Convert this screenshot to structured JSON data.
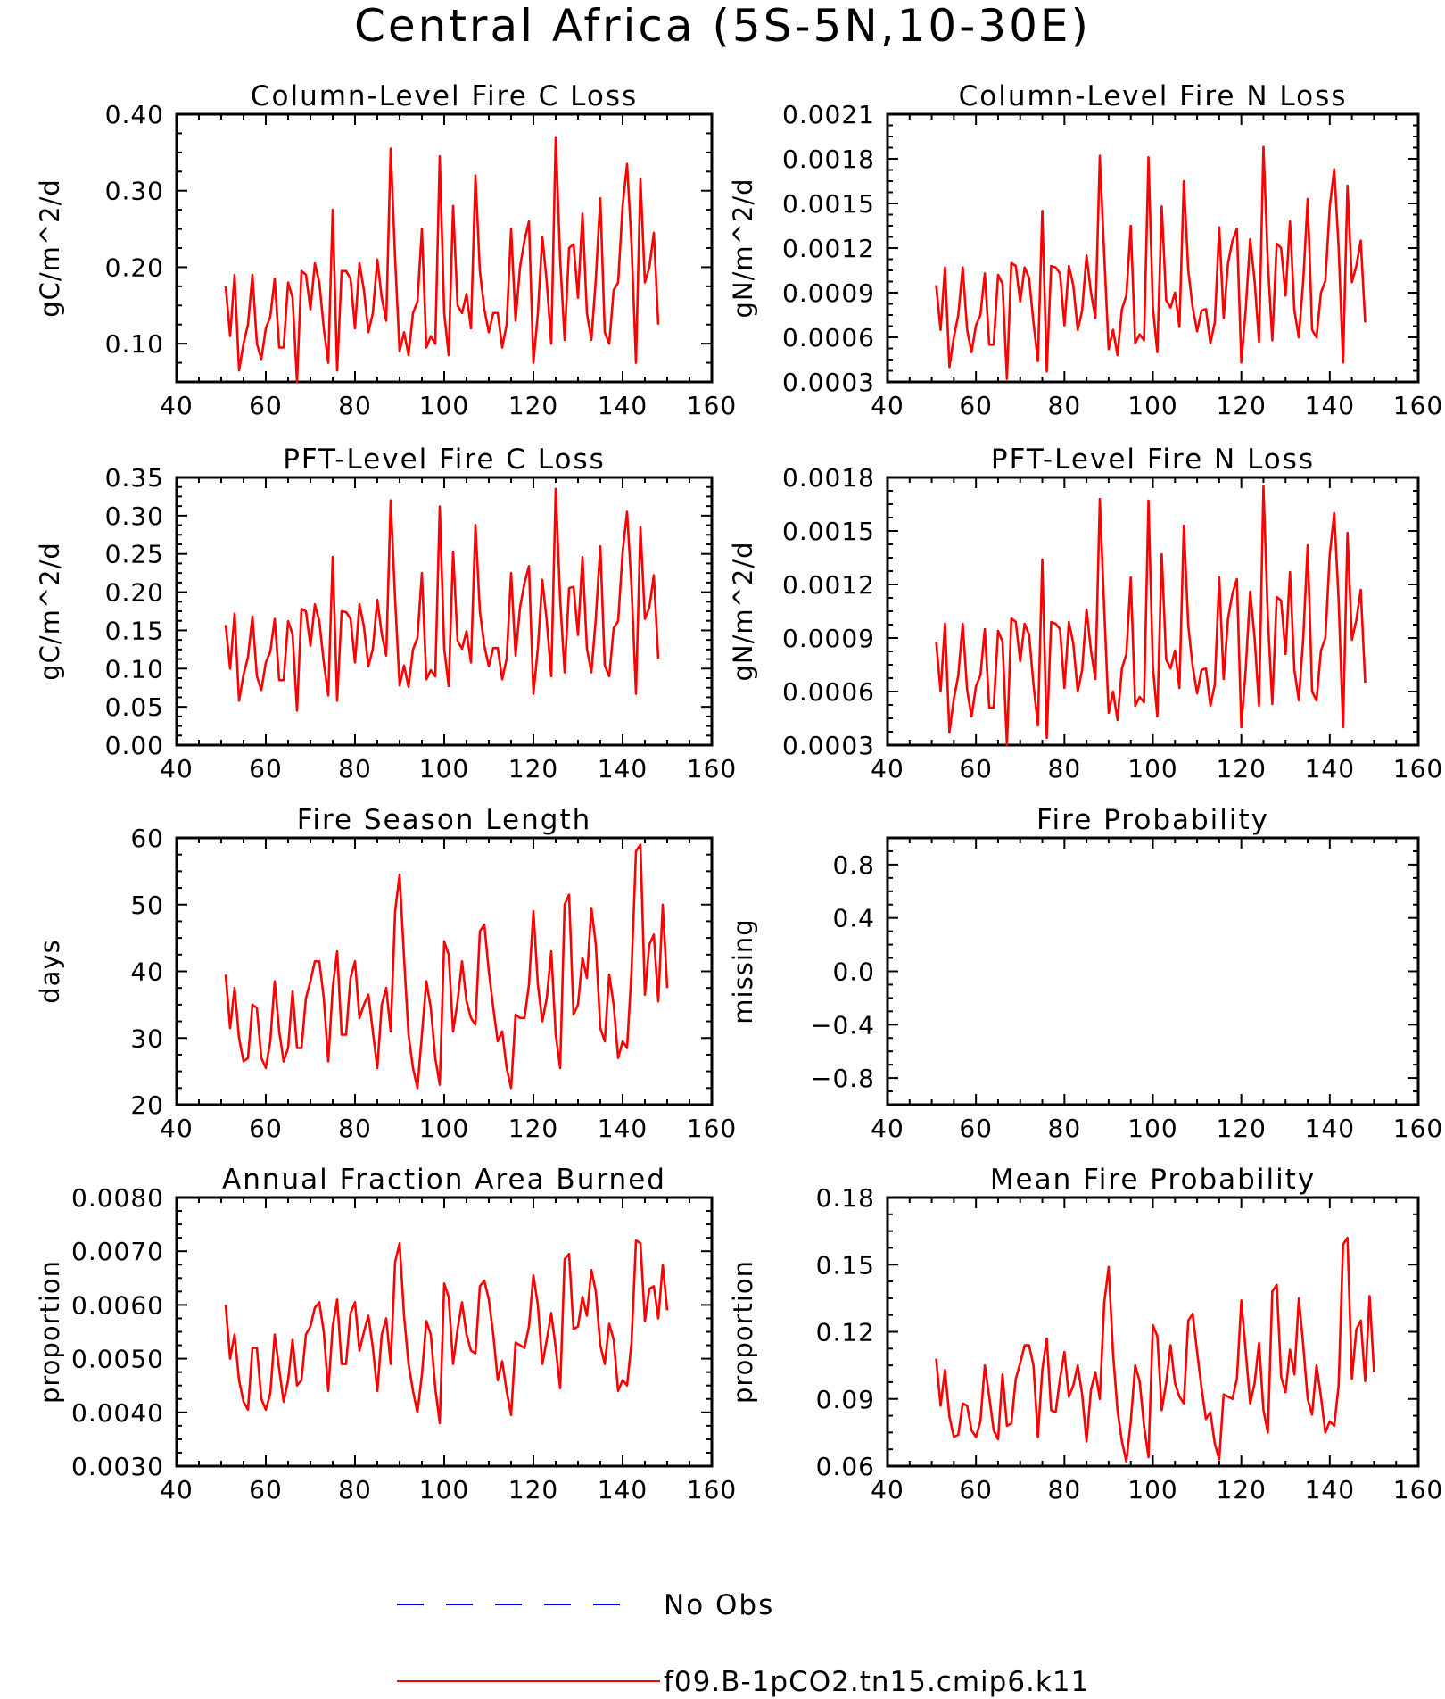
{
  "title": "Central Africa (5S-5N,10-30E)",
  "legend": [
    {
      "label": "No Obs",
      "color": "#0000ff",
      "style": "dashed"
    },
    {
      "label": "f09.B-1pCO2.tn15.cmip6.k11",
      "color": "#ff0000",
      "style": "solid"
    }
  ],
  "colors": {
    "series": "#ff0000",
    "obs": "#0000ff",
    "axis": "#000000"
  },
  "chart_data": [
    {
      "type": "line",
      "title": "Column-Level Fire C Loss",
      "ylabel": "gC/m^2/d",
      "xlim": [
        40,
        160
      ],
      "ylim": [
        0.05,
        0.4
      ],
      "xticks": [
        40,
        60,
        80,
        100,
        120,
        140,
        160
      ],
      "yticks": [
        0.1,
        0.2,
        0.3,
        0.4
      ],
      "ytick_labels": [
        "0.10",
        "0.20",
        "0.30",
        "0.40"
      ],
      "series": [
        {
          "name": "f09.B-1pCO2.tn15.cmip6.k11",
          "x_start": 51,
          "values": [
            0.175,
            0.11,
            0.19,
            0.065,
            0.1,
            0.125,
            0.19,
            0.1,
            0.08,
            0.12,
            0.135,
            0.185,
            0.095,
            0.095,
            0.18,
            0.16,
            0.05,
            0.195,
            0.19,
            0.145,
            0.205,
            0.18,
            0.12,
            0.075,
            0.275,
            0.065,
            0.195,
            0.195,
            0.185,
            0.12,
            0.205,
            0.17,
            0.115,
            0.14,
            0.21,
            0.16,
            0.13,
            0.355,
            0.21,
            0.09,
            0.115,
            0.085,
            0.14,
            0.155,
            0.25,
            0.095,
            0.11,
            0.1,
            0.345,
            0.14,
            0.085,
            0.28,
            0.15,
            0.14,
            0.165,
            0.12,
            0.32,
            0.195,
            0.145,
            0.115,
            0.14,
            0.14,
            0.095,
            0.125,
            0.25,
            0.13,
            0.2,
            0.235,
            0.26,
            0.075,
            0.14,
            0.24,
            0.18,
            0.1,
            0.37,
            0.21,
            0.105,
            0.225,
            0.23,
            0.16,
            0.27,
            0.14,
            0.105,
            0.185,
            0.29,
            0.115,
            0.1,
            0.17,
            0.18,
            0.28,
            0.335,
            0.23,
            0.075,
            0.315,
            0.18,
            0.2,
            0.245,
            0.125
          ]
        }
      ]
    },
    {
      "type": "line",
      "title": "Column-Level Fire N Loss",
      "ylabel": "gN/m^2/d",
      "xlim": [
        40,
        160
      ],
      "ylim": [
        0.0003,
        0.0021
      ],
      "xticks": [
        40,
        60,
        80,
        100,
        120,
        140,
        160
      ],
      "yticks": [
        0.0003,
        0.0006,
        0.0009,
        0.0012,
        0.0015,
        0.0018,
        0.0021
      ],
      "ytick_labels": [
        "0.0003",
        "0.0006",
        "0.0009",
        "0.0012",
        "0.0015",
        "0.0018",
        "0.0021"
      ],
      "series": [
        {
          "name": "f09.B-1pCO2.tn15.cmip6.k11",
          "x_start": 51,
          "values": [
            0.00095,
            0.00065,
            0.00107,
            0.0004,
            0.0006,
            0.00075,
            0.00107,
            0.00065,
            0.0005,
            0.00068,
            0.00075,
            0.00103,
            0.00055,
            0.00055,
            0.00102,
            0.00096,
            0.00032,
            0.0011,
            0.00108,
            0.00084,
            0.00107,
            0.001,
            0.0007,
            0.00044,
            0.00145,
            0.00037,
            0.00108,
            0.00107,
            0.00103,
            0.00068,
            0.00108,
            0.00095,
            0.00065,
            0.00078,
            0.00115,
            0.0009,
            0.00073,
            0.00182,
            0.00115,
            0.00052,
            0.00065,
            0.00048,
            0.00079,
            0.00088,
            0.00135,
            0.00056,
            0.00062,
            0.00058,
            0.00181,
            0.0008,
            0.0005,
            0.00148,
            0.00085,
            0.0008,
            0.0009,
            0.00067,
            0.00165,
            0.00105,
            0.0008,
            0.00064,
            0.00078,
            0.00079,
            0.00056,
            0.0007,
            0.00134,
            0.00073,
            0.0011,
            0.00125,
            0.00133,
            0.00043,
            0.00079,
            0.00126,
            0.00098,
            0.00057,
            0.00188,
            0.0011,
            0.00058,
            0.00123,
            0.0012,
            0.00088,
            0.00138,
            0.00078,
            0.0006,
            0.00098,
            0.00153,
            0.00065,
            0.0006,
            0.0009,
            0.00098,
            0.00148,
            0.00173,
            0.0012,
            0.00043,
            0.00162,
            0.00097,
            0.00108,
            0.00125,
            0.0007
          ]
        }
      ]
    },
    {
      "type": "line",
      "title": "PFT-Level Fire C Loss",
      "ylabel": "gC/m^2/d",
      "xlim": [
        40,
        160
      ],
      "ylim": [
        0.0,
        0.35
      ],
      "xticks": [
        40,
        60,
        80,
        100,
        120,
        140,
        160
      ],
      "yticks": [
        0.0,
        0.05,
        0.1,
        0.15,
        0.2,
        0.25,
        0.3,
        0.35
      ],
      "ytick_labels": [
        "0.00",
        "0.05",
        "0.10",
        "0.15",
        "0.20",
        "0.25",
        "0.30",
        "0.35"
      ],
      "series": [
        {
          "name": "f09.B-1pCO2.tn15.cmip6.k11",
          "x_start": 51,
          "values": [
            0.157,
            0.1,
            0.172,
            0.058,
            0.092,
            0.115,
            0.168,
            0.09,
            0.072,
            0.108,
            0.122,
            0.165,
            0.085,
            0.085,
            0.162,
            0.145,
            0.045,
            0.178,
            0.175,
            0.13,
            0.184,
            0.162,
            0.108,
            0.065,
            0.246,
            0.058,
            0.175,
            0.174,
            0.165,
            0.108,
            0.184,
            0.155,
            0.103,
            0.126,
            0.19,
            0.145,
            0.117,
            0.32,
            0.19,
            0.078,
            0.104,
            0.076,
            0.125,
            0.14,
            0.225,
            0.086,
            0.098,
            0.09,
            0.312,
            0.126,
            0.077,
            0.253,
            0.136,
            0.126,
            0.149,
            0.108,
            0.288,
            0.175,
            0.13,
            0.103,
            0.127,
            0.127,
            0.086,
            0.113,
            0.225,
            0.117,
            0.18,
            0.212,
            0.234,
            0.067,
            0.127,
            0.216,
            0.162,
            0.09,
            0.335,
            0.19,
            0.095,
            0.205,
            0.207,
            0.144,
            0.246,
            0.126,
            0.095,
            0.166,
            0.26,
            0.104,
            0.09,
            0.153,
            0.162,
            0.252,
            0.305,
            0.207,
            0.067,
            0.285,
            0.165,
            0.18,
            0.222,
            0.113
          ]
        }
      ]
    },
    {
      "type": "line",
      "title": "PFT-Level Fire N Loss",
      "ylabel": "gN/m^2/d",
      "xlim": [
        40,
        160
      ],
      "ylim": [
        0.0003,
        0.0018
      ],
      "xticks": [
        40,
        60,
        80,
        100,
        120,
        140,
        160
      ],
      "yticks": [
        0.0003,
        0.0006,
        0.0009,
        0.0012,
        0.0015,
        0.0018
      ],
      "ytick_labels": [
        "0.0003",
        "0.0006",
        "0.0009",
        "0.0012",
        "0.0015",
        "0.0018"
      ],
      "series": [
        {
          "name": "f09.B-1pCO2.tn15.cmip6.k11",
          "x_start": 51,
          "values": [
            0.00088,
            0.0006,
            0.00098,
            0.00037,
            0.00056,
            0.00069,
            0.00098,
            0.00061,
            0.00046,
            0.00063,
            0.00069,
            0.00095,
            0.00051,
            0.00051,
            0.00094,
            0.00088,
            0.0003,
            0.00101,
            0.00099,
            0.00077,
            0.00098,
            0.00092,
            0.00064,
            0.00041,
            0.00134,
            0.00034,
            0.00099,
            0.00098,
            0.00095,
            0.00062,
            0.00099,
            0.00087,
            0.0006,
            0.00072,
            0.00106,
            0.00083,
            0.00067,
            0.00168,
            0.00106,
            0.00048,
            0.0006,
            0.00044,
            0.00073,
            0.00081,
            0.00124,
            0.00052,
            0.00057,
            0.00054,
            0.00167,
            0.00074,
            0.00046,
            0.00137,
            0.00078,
            0.00073,
            0.00083,
            0.00062,
            0.00153,
            0.00097,
            0.00074,
            0.00059,
            0.00072,
            0.00073,
            0.00052,
            0.00064,
            0.00124,
            0.00067,
            0.00101,
            0.00115,
            0.00123,
            0.0004,
            0.00073,
            0.00116,
            0.0009,
            0.00052,
            0.00175,
            0.00101,
            0.00053,
            0.00113,
            0.00111,
            0.00081,
            0.00127,
            0.00072,
            0.00055,
            0.0009,
            0.00142,
            0.0006,
            0.00055,
            0.00083,
            0.0009,
            0.00137,
            0.0016,
            0.00111,
            0.0004,
            0.00149,
            0.00089,
            0.001,
            0.00117,
            0.00065
          ]
        }
      ]
    },
    {
      "type": "line",
      "title": "Fire Season Length",
      "ylabel": "days",
      "xlim": [
        40,
        160
      ],
      "ylim": [
        20,
        60
      ],
      "xticks": [
        40,
        60,
        80,
        100,
        120,
        140,
        160
      ],
      "yticks": [
        20,
        30,
        40,
        50,
        60
      ],
      "ytick_labels": [
        "20",
        "30",
        "40",
        "50",
        "60"
      ],
      "series": [
        {
          "name": "f09.B-1pCO2.tn15.cmip6.k11",
          "x_start": 51,
          "values": [
            39.5,
            31.5,
            37.5,
            30.0,
            26.5,
            27.0,
            35.0,
            34.5,
            27.0,
            25.5,
            29.5,
            38.5,
            31.0,
            26.5,
            28.5,
            37.0,
            28.5,
            28.5,
            36.0,
            38.5,
            41.5,
            41.5,
            36.0,
            26.5,
            37.5,
            43.0,
            30.5,
            30.5,
            39.0,
            41.5,
            33.0,
            35.0,
            36.5,
            31.0,
            25.5,
            35.0,
            37.5,
            31.0,
            49.0,
            54.5,
            42.0,
            30.5,
            25.5,
            22.5,
            30.5,
            38.5,
            34.5,
            27.0,
            23.0,
            44.5,
            42.5,
            31.0,
            35.5,
            41.5,
            35.5,
            33.0,
            32.0,
            46.0,
            47.0,
            40.0,
            34.5,
            29.5,
            31.0,
            25.5,
            22.5,
            33.5,
            33.0,
            33.0,
            38.0,
            49.0,
            38.0,
            32.5,
            36.0,
            43.0,
            30.5,
            25.5,
            50.0,
            51.5,
            33.5,
            35.0,
            42.0,
            39.0,
            49.5,
            44.0,
            31.5,
            29.5,
            39.5,
            35.0,
            27.0,
            29.5,
            28.5,
            40.0,
            58.0,
            59.0,
            36.5,
            44.0,
            45.5,
            35.5,
            50.0,
            37.5
          ]
        }
      ]
    },
    {
      "type": "line",
      "title": "Fire Probability",
      "ylabel": "missing",
      "xlim": [
        40,
        160
      ],
      "ylim": [
        -1.0,
        1.0
      ],
      "xticks": [
        40,
        60,
        80,
        100,
        120,
        140,
        160
      ],
      "yticks": [
        -0.8,
        -0.4,
        0.0,
        0.4,
        0.8
      ],
      "ytick_labels": [
        "−0.8",
        "−0.4",
        "0.0",
        "0.4",
        "0.8"
      ],
      "series": []
    },
    {
      "type": "line",
      "title": "Annual Fraction Area Burned",
      "ylabel": "proportion",
      "xlim": [
        40,
        160
      ],
      "ylim": [
        0.003,
        0.008
      ],
      "xticks": [
        40,
        60,
        80,
        100,
        120,
        140,
        160
      ],
      "yticks": [
        0.003,
        0.004,
        0.005,
        0.006,
        0.007,
        0.008
      ],
      "ytick_labels": [
        "0.0030",
        "0.0040",
        "0.0050",
        "0.0060",
        "0.0070",
        "0.0080"
      ],
      "series": [
        {
          "name": "f09.B-1pCO2.tn15.cmip6.k11",
          "x_start": 51,
          "values": [
            0.006,
            0.005,
            0.00545,
            0.0046,
            0.0042,
            0.00405,
            0.0052,
            0.0052,
            0.00425,
            0.00405,
            0.00435,
            0.00545,
            0.0048,
            0.0042,
            0.0046,
            0.00535,
            0.0045,
            0.0046,
            0.00545,
            0.0056,
            0.00595,
            0.00605,
            0.0055,
            0.0044,
            0.0056,
            0.0061,
            0.0049,
            0.0049,
            0.00585,
            0.00605,
            0.00515,
            0.0055,
            0.0058,
            0.0052,
            0.0044,
            0.00545,
            0.00575,
            0.0049,
            0.0068,
            0.00715,
            0.0058,
            0.0049,
            0.0044,
            0.004,
            0.0047,
            0.0057,
            0.00545,
            0.00445,
            0.0038,
            0.0064,
            0.00615,
            0.0049,
            0.00555,
            0.00605,
            0.00545,
            0.00515,
            0.0051,
            0.00635,
            0.00645,
            0.0061,
            0.00545,
            0.0046,
            0.00495,
            0.0044,
            0.00395,
            0.0053,
            0.00525,
            0.0052,
            0.0056,
            0.00655,
            0.006,
            0.0049,
            0.00535,
            0.00585,
            0.0052,
            0.00445,
            0.00685,
            0.00695,
            0.00555,
            0.0056,
            0.00615,
            0.0058,
            0.00665,
            0.00625,
            0.00525,
            0.0049,
            0.00565,
            0.00535,
            0.0044,
            0.0046,
            0.0045,
            0.0053,
            0.0072,
            0.00715,
            0.0057,
            0.0063,
            0.00635,
            0.00575,
            0.00675,
            0.0059
          ]
        }
      ]
    },
    {
      "type": "line",
      "title": "Mean Fire Probability",
      "ylabel": "proportion",
      "xlim": [
        40,
        160
      ],
      "ylim": [
        0.06,
        0.18
      ],
      "xticks": [
        40,
        60,
        80,
        100,
        120,
        140,
        160
      ],
      "yticks": [
        0.06,
        0.09,
        0.12,
        0.15,
        0.18
      ],
      "ytick_labels": [
        "0.06",
        "0.09",
        "0.12",
        "0.15",
        "0.18"
      ],
      "series": [
        {
          "name": "f09.B-1pCO2.tn15.cmip6.k11",
          "x_start": 51,
          "values": [
            0.108,
            0.087,
            0.103,
            0.082,
            0.073,
            0.074,
            0.088,
            0.087,
            0.076,
            0.073,
            0.08,
            0.105,
            0.091,
            0.076,
            0.072,
            0.101,
            0.078,
            0.079,
            0.099,
            0.106,
            0.114,
            0.114,
            0.105,
            0.073,
            0.103,
            0.117,
            0.085,
            0.084,
            0.099,
            0.111,
            0.091,
            0.096,
            0.105,
            0.092,
            0.071,
            0.094,
            0.102,
            0.09,
            0.133,
            0.149,
            0.11,
            0.085,
            0.071,
            0.062,
            0.08,
            0.105,
            0.098,
            0.078,
            0.064,
            0.123,
            0.118,
            0.085,
            0.097,
            0.114,
            0.097,
            0.091,
            0.088,
            0.125,
            0.128,
            0.111,
            0.095,
            0.081,
            0.084,
            0.07,
            0.063,
            0.092,
            0.091,
            0.09,
            0.099,
            0.134,
            0.111,
            0.088,
            0.097,
            0.115,
            0.085,
            0.075,
            0.138,
            0.141,
            0.1,
            0.093,
            0.112,
            0.101,
            0.135,
            0.114,
            0.09,
            0.083,
            0.105,
            0.091,
            0.075,
            0.08,
            0.078,
            0.096,
            0.159,
            0.162,
            0.099,
            0.121,
            0.125,
            0.098,
            0.136,
            0.102
          ]
        }
      ]
    }
  ]
}
